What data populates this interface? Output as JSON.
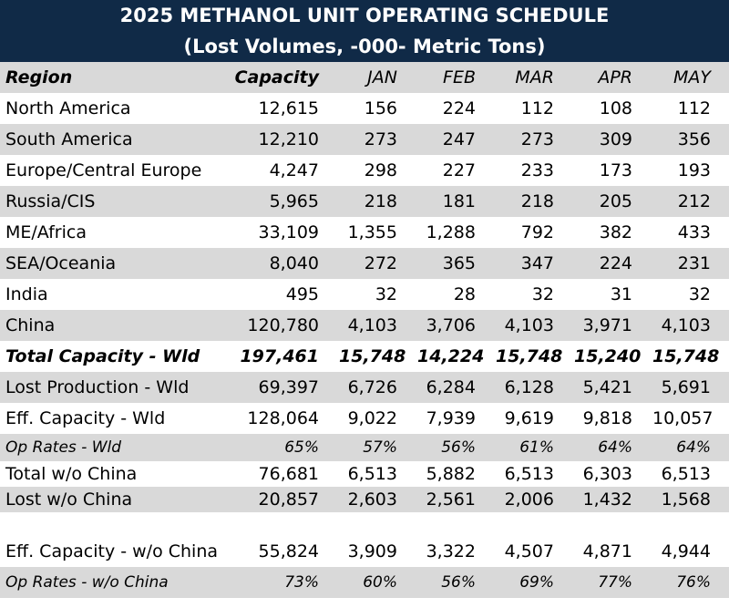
{
  "title": {
    "line1": "2025 METHANOL UNIT OPERATING SCHEDULE",
    "line2": "(Lost Volumes, -000- Metric Tons)"
  },
  "columns": [
    "Region",
    "Capacity",
    "JAN",
    "FEB",
    "MAR",
    "APR",
    "MAY"
  ],
  "rows": [
    {
      "label": "North America",
      "capacity": "12,615",
      "values": [
        "156",
        "224",
        "112",
        "108",
        "112"
      ]
    },
    {
      "label": "South America",
      "capacity": "12,210",
      "values": [
        "273",
        "247",
        "273",
        "309",
        "356"
      ]
    },
    {
      "label": "Europe/Central Europe",
      "capacity": "4,247",
      "values": [
        "298",
        "227",
        "233",
        "173",
        "193"
      ]
    },
    {
      "label": "Russia/CIS",
      "capacity": "5,965",
      "values": [
        "218",
        "181",
        "218",
        "205",
        "212"
      ]
    },
    {
      "label": "ME/Africa",
      "capacity": "33,109",
      "values": [
        "1,355",
        "1,288",
        "792",
        "382",
        "433"
      ]
    },
    {
      "label": "SEA/Oceania",
      "capacity": "8,040",
      "values": [
        "272",
        "365",
        "347",
        "224",
        "231"
      ]
    },
    {
      "label": "India",
      "capacity": "495",
      "values": [
        "32",
        "28",
        "32",
        "31",
        "32"
      ]
    },
    {
      "label": "China",
      "capacity": "120,780",
      "values": [
        "4,103",
        "3,706",
        "4,103",
        "3,971",
        "4,103"
      ]
    },
    {
      "label": "Total Capacity - Wld",
      "capacity": "197,461",
      "values": [
        "15,748",
        "14,224",
        "15,748",
        "15,240",
        "15,748"
      ]
    },
    {
      "label": "Lost Production - Wld",
      "capacity": "69,397",
      "values": [
        "6,726",
        "6,284",
        "6,128",
        "5,421",
        "5,691"
      ]
    },
    {
      "label": "Eff. Capacity - Wld",
      "capacity": "128,064",
      "values": [
        "9,022",
        "7,939",
        "9,619",
        "9,818",
        "10,057"
      ]
    },
    {
      "label": "Op Rates - Wld",
      "capacity": "65%",
      "values": [
        "57%",
        "56%",
        "61%",
        "64%",
        "64%"
      ]
    },
    {
      "label": "Total w/o China",
      "capacity": "76,681",
      "values": [
        "6,513",
        "5,882",
        "6,513",
        "6,303",
        "6,513"
      ]
    },
    {
      "label": "Lost w/o China",
      "capacity": "20,857",
      "values": [
        "2,603",
        "2,561",
        "2,006",
        "1,432",
        "1,568"
      ]
    },
    {
      "label": "Eff. Capacity - w/o China",
      "capacity": "55,824",
      "values": [
        "3,909",
        "3,322",
        "4,507",
        "4,871",
        "4,944"
      ]
    },
    {
      "label": "Op Rates - w/o China",
      "capacity": "73%",
      "values": [
        "60%",
        "56%",
        "69%",
        "77%",
        "76%"
      ]
    }
  ]
}
